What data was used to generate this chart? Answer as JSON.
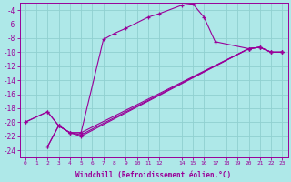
{
  "xlabel": "Windchill (Refroidissement éolien,°C)",
  "background_color": "#aee8e8",
  "grid_color": "#90d0d0",
  "line_color": "#990099",
  "xlim": [
    -0.5,
    23.5
  ],
  "ylim": [
    -25,
    -3
  ],
  "xticks": [
    0,
    1,
    2,
    3,
    4,
    5,
    6,
    7,
    8,
    9,
    10,
    11,
    12,
    14,
    15,
    16,
    17,
    18,
    19,
    20,
    21,
    22,
    23
  ],
  "yticks": [
    -4,
    -6,
    -8,
    -10,
    -12,
    -14,
    -16,
    -18,
    -20,
    -22,
    -24
  ],
  "series": [
    {
      "x": [
        0,
        2,
        3,
        4,
        5,
        7,
        8,
        9,
        11,
        12,
        14,
        15,
        16,
        17,
        20,
        21,
        22,
        23
      ],
      "y": [
        -20,
        -18.5,
        -20.5,
        -21.5,
        -21.5,
        -8.2,
        -7.3,
        -6.6,
        -5.0,
        -4.5,
        -3.3,
        -3.1,
        -5.0,
        -8.5,
        -9.5,
        -9.3,
        -10.0,
        -10.0
      ]
    },
    {
      "x": [
        0,
        2,
        3,
        4,
        5,
        20,
        21,
        22,
        23
      ],
      "y": [
        -20,
        -18.5,
        -20.5,
        -21.5,
        -21.5,
        -9.5,
        -9.3,
        -10.0,
        -10.0
      ]
    },
    {
      "x": [
        2,
        3,
        4,
        5,
        20,
        21,
        22,
        23
      ],
      "y": [
        -23.5,
        -20.5,
        -21.5,
        -21.8,
        -9.5,
        -9.3,
        -10.0,
        -10.0
      ]
    },
    {
      "x": [
        2,
        3,
        4,
        5,
        20,
        21,
        22,
        23
      ],
      "y": [
        -23.5,
        -20.5,
        -21.5,
        -22.0,
        -9.5,
        -9.3,
        -10.0,
        -10.0
      ]
    }
  ]
}
